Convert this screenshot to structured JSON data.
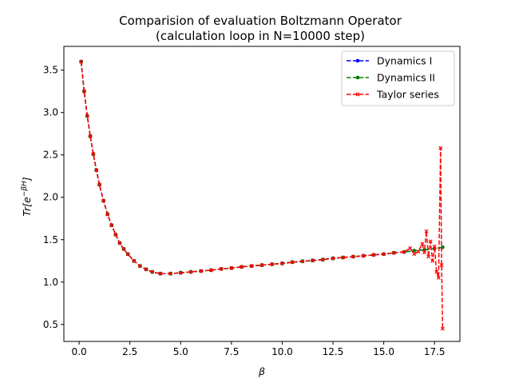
{
  "chart_data": {
    "type": "line",
    "title": "Comparision of evaluation Boltzmann Operator",
    "subtitle": "(calculation loop in N=10000 step)",
    "xlabel": "β",
    "ylabel": "Tr[e^{-βH}]",
    "xlim": [
      -0.75,
      18.75
    ],
    "ylim": [
      0.3,
      3.78
    ],
    "xticks": [
      "0.0",
      "2.5",
      "5.0",
      "7.5",
      "10.0",
      "12.5",
      "15.0",
      "17.5"
    ],
    "yticks": [
      "0.5",
      "1.0",
      "1.5",
      "2.0",
      "2.5",
      "3.0",
      "3.5"
    ],
    "grid": false,
    "legend_position": "top-right",
    "series": [
      {
        "name": "Dynamics I",
        "color": "#0000ff",
        "marker": "circle",
        "x": [
          0.1,
          0.25,
          0.4,
          0.55,
          0.7,
          0.85,
          1.0,
          1.2,
          1.4,
          1.6,
          1.8,
          2.0,
          2.2,
          2.4,
          2.7,
          3.0,
          3.3,
          3.6,
          4.0,
          4.5,
          5.0,
          5.5,
          6.0,
          6.5,
          7.0,
          7.5,
          8.0,
          8.5,
          9.0,
          9.5,
          10.0,
          10.5,
          11.0,
          11.5,
          12.0,
          12.5,
          13.0,
          13.5,
          14.0,
          14.5,
          15.0,
          15.5,
          16.0,
          16.5,
          17.0,
          17.5,
          17.9
        ],
        "y": [
          3.6,
          3.25,
          2.96,
          2.72,
          2.51,
          2.32,
          2.15,
          1.96,
          1.8,
          1.67,
          1.56,
          1.46,
          1.39,
          1.33,
          1.25,
          1.19,
          1.15,
          1.12,
          1.1,
          1.1,
          1.11,
          1.12,
          1.13,
          1.14,
          1.155,
          1.165,
          1.18,
          1.19,
          1.2,
          1.21,
          1.22,
          1.235,
          1.245,
          1.255,
          1.265,
          1.28,
          1.29,
          1.3,
          1.31,
          1.32,
          1.33,
          1.345,
          1.355,
          1.37,
          1.38,
          1.395,
          1.41
        ]
      },
      {
        "name": "Dynamics II",
        "color": "#008000",
        "marker": "circle",
        "x": [
          0.1,
          0.25,
          0.4,
          0.55,
          0.7,
          0.85,
          1.0,
          1.2,
          1.4,
          1.6,
          1.8,
          2.0,
          2.2,
          2.4,
          2.7,
          3.0,
          3.3,
          3.6,
          4.0,
          4.5,
          5.0,
          5.5,
          6.0,
          6.5,
          7.0,
          7.5,
          8.0,
          8.5,
          9.0,
          9.5,
          10.0,
          10.5,
          11.0,
          11.5,
          12.0,
          12.5,
          13.0,
          13.5,
          14.0,
          14.5,
          15.0,
          15.5,
          16.0,
          16.5,
          17.0,
          17.5,
          17.9
        ],
        "y": [
          3.6,
          3.25,
          2.96,
          2.72,
          2.51,
          2.32,
          2.15,
          1.96,
          1.8,
          1.67,
          1.56,
          1.46,
          1.39,
          1.33,
          1.25,
          1.19,
          1.15,
          1.12,
          1.1,
          1.1,
          1.11,
          1.12,
          1.13,
          1.14,
          1.155,
          1.165,
          1.18,
          1.19,
          1.2,
          1.21,
          1.22,
          1.235,
          1.245,
          1.255,
          1.265,
          1.28,
          1.29,
          1.3,
          1.31,
          1.32,
          1.33,
          1.345,
          1.355,
          1.37,
          1.38,
          1.395,
          1.41
        ]
      },
      {
        "name": "Taylor series",
        "color": "#ff0000",
        "marker": "x",
        "x": [
          0.1,
          0.25,
          0.4,
          0.55,
          0.7,
          0.85,
          1.0,
          1.2,
          1.4,
          1.6,
          1.8,
          2.0,
          2.2,
          2.4,
          2.7,
          3.0,
          3.3,
          3.6,
          4.0,
          4.5,
          5.0,
          5.5,
          6.0,
          6.5,
          7.0,
          7.5,
          8.0,
          8.5,
          9.0,
          9.5,
          10.0,
          10.5,
          11.0,
          11.5,
          12.0,
          12.5,
          13.0,
          13.5,
          14.0,
          14.5,
          15.0,
          15.5,
          16.0,
          16.3,
          16.5,
          16.7,
          16.9,
          17.0,
          17.1,
          17.2,
          17.3,
          17.4,
          17.5,
          17.6,
          17.7,
          17.8,
          17.85,
          17.9
        ],
        "y": [
          3.6,
          3.25,
          2.96,
          2.72,
          2.51,
          2.32,
          2.15,
          1.96,
          1.8,
          1.67,
          1.56,
          1.46,
          1.39,
          1.33,
          1.25,
          1.19,
          1.15,
          1.12,
          1.1,
          1.1,
          1.11,
          1.12,
          1.13,
          1.14,
          1.155,
          1.165,
          1.18,
          1.19,
          1.2,
          1.21,
          1.22,
          1.235,
          1.245,
          1.255,
          1.265,
          1.28,
          1.29,
          1.3,
          1.31,
          1.32,
          1.33,
          1.345,
          1.355,
          1.4,
          1.33,
          1.36,
          1.45,
          1.35,
          1.6,
          1.3,
          1.48,
          1.25,
          1.42,
          1.12,
          1.05,
          2.58,
          1.2,
          0.45
        ]
      }
    ]
  }
}
